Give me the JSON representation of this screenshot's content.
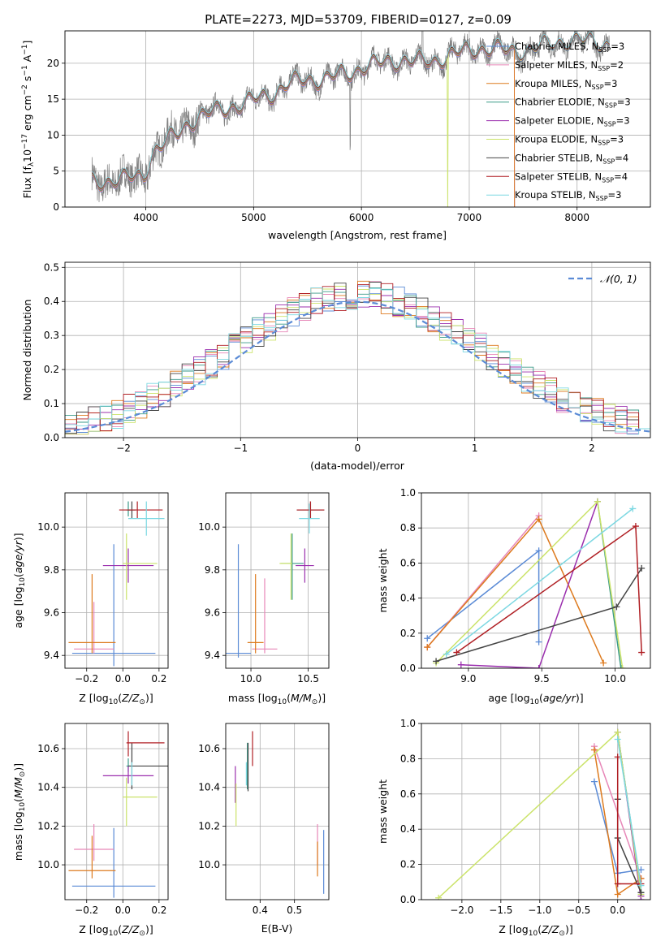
{
  "title": "PLATE=2273, MJD=53709, FIBERID=0127, z=0.09",
  "colors": {
    "Chabrier MILES": "#5b8bd6",
    "Salpeter MILES": "#e787b8",
    "Kroupa MILES": "#dd7a1e",
    "Chabrier ELODIE": "#3a9a88",
    "Salpeter ELODIE": "#9b2fae",
    "Kroupa ELODIE": "#cbe36a",
    "Chabrier STELIB": "#444444",
    "Salpeter STELIB": "#b01f24",
    "Kroupa STELIB": "#7dd8e2",
    "gaussian": "#5b8bd6",
    "observed": "#808080"
  },
  "chart_data": [
    {
      "type": "line",
      "id": "spectrum",
      "xlabel": "wavelength [Angstrom, rest frame]",
      "ylabel": "Flux [f",
      "ylabel_parts": [
        "Flux [f",
        "λ",
        "10",
        "−17",
        " erg cm",
        "−2",
        " s",
        "−1",
        " A",
        "−1",
        "]"
      ],
      "xlim": [
        3250,
        8680
      ],
      "ylim": [
        0,
        24.5
      ],
      "xticks": [
        4000,
        5000,
        6000,
        7000,
        8000
      ],
      "yticks": [
        0,
        5,
        10,
        15,
        20
      ],
      "legend_placement": "top-right",
      "legend": [
        {
          "name": "Chabrier MILES",
          "sub": "SSP",
          "val": "=3"
        },
        {
          "name": "Salpeter MILES",
          "sub": "SSP",
          "val": "=2"
        },
        {
          "name": "Kroupa MILES",
          "sub": "SSP",
          "val": "=3"
        },
        {
          "name": "Chabrier ELODIE",
          "sub": "SSP",
          "val": "=3"
        },
        {
          "name": "Salpeter ELODIE",
          "sub": "SSP",
          "val": "=3"
        },
        {
          "name": "Kroupa ELODIE",
          "sub": "SSP",
          "val": "=3"
        },
        {
          "name": "Chabrier STELIB",
          "sub": "SSP",
          "val": "=4"
        },
        {
          "name": "Salpeter STELIB",
          "sub": "SSP",
          "val": "=4"
        },
        {
          "name": "Kroupa STELIB",
          "sub": "SSP",
          "val": "=3"
        }
      ],
      "continuum": [
        [
          3500,
          3.0
        ],
        [
          3600,
          2.9
        ],
        [
          3700,
          3.6
        ],
        [
          3800,
          3.9
        ],
        [
          3900,
          4.2
        ],
        [
          3980,
          4.6
        ],
        [
          4050,
          7.5
        ],
        [
          4100,
          8.6
        ],
        [
          4200,
          9.3
        ],
        [
          4300,
          10.0
        ],
        [
          4400,
          11.3
        ],
        [
          4500,
          12.2
        ],
        [
          4600,
          12.8
        ],
        [
          4700,
          13.6
        ],
        [
          4800,
          14.3
        ],
        [
          4900,
          14.7
        ],
        [
          5000,
          15.2
        ],
        [
          5100,
          15.4
        ],
        [
          5200,
          15.6
        ],
        [
          5300,
          16.5
        ],
        [
          5400,
          17.1
        ],
        [
          5500,
          17.6
        ],
        [
          5600,
          17.9
        ],
        [
          5700,
          18.3
        ],
        [
          5800,
          18.8
        ],
        [
          5900,
          18.9
        ],
        [
          6000,
          19.3
        ],
        [
          6100,
          19.4
        ],
        [
          6200,
          19.6
        ],
        [
          6300,
          20.0
        ],
        [
          6400,
          20.4
        ],
        [
          6500,
          20.5
        ],
        [
          6600,
          20.6
        ],
        [
          6700,
          20.8
        ],
        [
          6800,
          21.1
        ],
        [
          6900,
          21.2
        ],
        [
          7000,
          21.3
        ],
        [
          7100,
          21.6
        ],
        [
          7200,
          21.8
        ],
        [
          7300,
          21.9
        ],
        [
          7400,
          22.0
        ],
        [
          7500,
          22.1
        ],
        [
          7600,
          22.2
        ],
        [
          7700,
          22.3
        ],
        [
          7800,
          22.4
        ],
        [
          7900,
          22.6
        ],
        [
          8000,
          22.7
        ],
        [
          8100,
          22.9
        ],
        [
          8200,
          23.0
        ],
        [
          8300,
          23.0
        ]
      ],
      "obs_range": [
        3500,
        8300
      ],
      "model_ranges": {
        "Salpeter MILES": [
          3500,
          7420
        ],
        "Kroupa MILES": [
          3500,
          7420
        ],
        "Chabrier MILES": [
          3500,
          7420
        ]
      },
      "features": [
        {
          "x": 5895,
          "depth": 3.2
        },
        {
          "x": 6800,
          "depth": 21.0,
          "model": "Kroupa ELODIE"
        },
        {
          "x": 6565,
          "spike": 7.0
        }
      ]
    },
    {
      "type": "bar",
      "id": "residuals",
      "xlabel": "(data-model)/error",
      "ylabel": "Normed distribution",
      "xlim": [
        -2.5,
        2.5
      ],
      "ylim": [
        0,
        0.515
      ],
      "xticks": [
        -2,
        -1,
        0,
        1,
        2
      ],
      "yticks": [
        0.0,
        0.1,
        0.2,
        0.3,
        0.4,
        0.5
      ],
      "legend": [
        {
          "name": "𝒩(0, 1)"
        }
      ],
      "legend_placement": "top-right",
      "bin_width": 0.1
    },
    {
      "type": "scatter",
      "id": "age_vs_Z",
      "xlabel": "Z [log",
      "ylabel": "age  [log",
      "xlim": [
        -0.32,
        0.25
      ],
      "ylim": [
        9.34,
        10.16
      ],
      "xticks": [
        -0.2,
        0.0,
        0.2
      ],
      "yticks": [
        9.4,
        9.6,
        9.8,
        10.0
      ],
      "points": [
        {
          "model": "Chabrier MILES",
          "x": -0.05,
          "xerr": [
            0.23,
            0.23
          ],
          "y": 9.41,
          "yerr": [
            0.06,
            0.51
          ]
        },
        {
          "model": "Salpeter MILES",
          "x": -0.16,
          "xerr": [
            0.11,
            0.11
          ],
          "y": 9.43,
          "yerr": [
            0.02,
            0.22
          ]
        },
        {
          "model": "Kroupa MILES",
          "x": -0.17,
          "xerr": [
            0.13,
            0.13
          ],
          "y": 9.46,
          "yerr": [
            0.05,
            0.32
          ]
        },
        {
          "model": "Chabrier ELODIE",
          "x": 0.03,
          "xerr": [
            0.01,
            0.01
          ],
          "y": 10.08,
          "yerr": [
            0.03,
            0.04
          ]
        },
        {
          "model": "Salpeter ELODIE",
          "x": 0.03,
          "xerr": [
            0.14,
            0.14
          ],
          "y": 9.82,
          "yerr": [
            0.08,
            0.08
          ]
        },
        {
          "model": "Kroupa ELODIE",
          "x": 0.02,
          "xerr": [
            0.02,
            0.17
          ],
          "y": 9.83,
          "yerr": [
            0.17,
            0.14
          ]
        },
        {
          "model": "Chabrier STELIB",
          "x": 0.05,
          "xerr": [
            0.02,
            0.02
          ],
          "y": 10.08,
          "yerr": [
            0.04,
            0.04
          ]
        },
        {
          "model": "Salpeter STELIB",
          "x": 0.08,
          "xerr": [
            0.1,
            0.14
          ],
          "y": 10.08,
          "yerr": [
            0.04,
            0.04
          ]
        },
        {
          "model": "Kroupa STELIB",
          "x": 0.13,
          "xerr": [
            0.1,
            0.1
          ],
          "y": 10.04,
          "yerr": [
            0.08,
            0.08
          ]
        }
      ]
    },
    {
      "type": "scatter",
      "id": "age_vs_mass",
      "xlabel": "mass [log",
      "xlim": [
        9.78,
        10.68
      ],
      "ylim": [
        9.34,
        10.16
      ],
      "xticks": [
        10.0,
        10.5
      ],
      "yticks": [
        9.4,
        9.6,
        9.8,
        10.0
      ],
      "points": [
        {
          "model": "Chabrier MILES",
          "x": 9.89,
          "xerr": [
            0.11,
            0.11
          ],
          "y": 9.41,
          "yerr": [
            0.02,
            0.51
          ]
        },
        {
          "model": "Salpeter MILES",
          "x": 10.12,
          "xerr": [
            0.11,
            0.11
          ],
          "y": 9.43,
          "yerr": [
            0.02,
            0.33
          ]
        },
        {
          "model": "Kroupa MILES",
          "x": 10.04,
          "xerr": [
            0.07,
            0.07
          ],
          "y": 9.46,
          "yerr": [
            0.05,
            0.32
          ]
        },
        {
          "model": "Chabrier ELODIE",
          "x": 10.36,
          "xerr": [
            0.1,
            0.1
          ],
          "y": 9.83,
          "yerr": [
            0.17,
            0.14
          ]
        },
        {
          "model": "Salpeter ELODIE",
          "x": 10.47,
          "xerr": [
            0.08,
            0.08
          ],
          "y": 9.82,
          "yerr": [
            0.08,
            0.08
          ]
        },
        {
          "model": "Kroupa ELODIE",
          "x": 10.35,
          "xerr": [
            0.1,
            0.01
          ],
          "y": 9.83,
          "yerr": [
            0.17,
            0.14
          ]
        },
        {
          "model": "Chabrier STELIB",
          "x": 10.52,
          "xerr": [
            0.12,
            0.12
          ],
          "y": 10.08,
          "yerr": [
            0.04,
            0.04
          ]
        },
        {
          "model": "Salpeter STELIB",
          "x": 10.52,
          "xerr": [
            0.12,
            0.12
          ],
          "y": 10.08,
          "yerr": [
            0.04,
            0.04
          ]
        },
        {
          "model": "Kroupa STELIB",
          "x": 10.51,
          "xerr": [
            0.09,
            0.09
          ],
          "y": 10.04,
          "yerr": [
            0.07,
            0.07
          ]
        }
      ]
    },
    {
      "type": "line",
      "id": "weight_vs_age",
      "xlabel": "age  [log",
      "ylabel": "mass weight",
      "xlim": [
        8.68,
        10.24
      ],
      "ylim": [
        0,
        1.0
      ],
      "xticks": [
        9.0,
        9.5,
        10.0
      ],
      "yticks": [
        0.0,
        0.2,
        0.4,
        0.6,
        0.8,
        1.0
      ],
      "series": [
        {
          "name": "Chabrier MILES",
          "x": [
            8.72,
            9.48,
            9.48
          ],
          "y": [
            0.17,
            0.67,
            0.15
          ]
        },
        {
          "name": "Salpeter MILES",
          "x": [
            8.72,
            9.48
          ],
          "y": [
            0.12,
            0.87
          ]
        },
        {
          "name": "Kroupa MILES",
          "x": [
            8.72,
            9.48,
            9.92
          ],
          "y": [
            0.12,
            0.85,
            0.03
          ]
        },
        {
          "name": "Chabrier ELODIE",
          "x": [
            9.88,
            10.04
          ],
          "y": [
            0.95,
            0.0
          ]
        },
        {
          "name": "Salpeter ELODIE",
          "x": [
            8.95,
            9.48,
            9.88
          ],
          "y": [
            0.02,
            0.0,
            0.95
          ]
        },
        {
          "name": "Kroupa ELODIE",
          "x": [
            8.78,
            9.88,
            10.05
          ],
          "y": [
            0.03,
            0.95,
            0.0
          ]
        },
        {
          "name": "Chabrier STELIB",
          "x": [
            8.78,
            10.01,
            10.18
          ],
          "y": [
            0.04,
            0.35,
            0.57
          ]
        },
        {
          "name": "Salpeter STELIB",
          "x": [
            8.92,
            10.14,
            10.18
          ],
          "y": [
            0.09,
            0.81,
            0.09
          ]
        },
        {
          "name": "Kroupa STELIB",
          "x": [
            8.85,
            10.12
          ],
          "y": [
            0.08,
            0.91
          ]
        }
      ]
    },
    {
      "type": "scatter",
      "id": "mass_vs_Z",
      "xlabel": "Z [log",
      "ylabel": "mass [log",
      "xlim": [
        -0.32,
        0.25
      ],
      "ylim": [
        9.82,
        10.73
      ],
      "xticks": [
        -0.2,
        0.0,
        0.2
      ],
      "yticks": [
        10.0,
        10.2,
        10.4,
        10.6
      ],
      "points": [
        {
          "model": "Chabrier MILES",
          "x": -0.05,
          "xerr": [
            0.23,
            0.23
          ],
          "y": 9.89,
          "yerr": [
            0.06,
            0.3
          ]
        },
        {
          "model": "Salpeter MILES",
          "x": -0.16,
          "xerr": [
            0.11,
            0.11
          ],
          "y": 10.08,
          "yerr": [
            0.06,
            0.13
          ]
        },
        {
          "model": "Kroupa MILES",
          "x": -0.17,
          "xerr": [
            0.13,
            0.13
          ],
          "y": 9.97,
          "yerr": [
            0.04,
            0.18
          ]
        },
        {
          "model": "Chabrier ELODIE",
          "x": 0.03,
          "xerr": [
            0.01,
            0.01
          ],
          "y": 10.51,
          "yerr": [
            0.03,
            0.04
          ]
        },
        {
          "model": "Salpeter ELODIE",
          "x": 0.03,
          "xerr": [
            0.14,
            0.14
          ],
          "y": 10.46,
          "yerr": [
            0.04,
            0.05
          ]
        },
        {
          "model": "Kroupa ELODIE",
          "x": 0.02,
          "xerr": [
            0.02,
            0.17
          ],
          "y": 10.35,
          "yerr": [
            0.15,
            0.1
          ]
        },
        {
          "model": "Chabrier STELIB",
          "x": 0.05,
          "xerr": [
            0.02,
            0.2
          ],
          "y": 10.51,
          "yerr": [
            0.12,
            0.12
          ]
        },
        {
          "model": "Salpeter STELIB",
          "x": 0.03,
          "xerr": [
            0.01,
            0.2
          ],
          "y": 10.63,
          "yerr": [
            0.07,
            0.06
          ]
        },
        {
          "model": "Kroupa STELIB",
          "x": 0.05,
          "xerr": [
            0.0,
            0.0
          ],
          "y": 10.47,
          "yerr": [
            0.06,
            0.06
          ]
        }
      ]
    },
    {
      "type": "scatter",
      "id": "mass_vs_EBV",
      "xlabel": "E(B-V)",
      "xlim": [
        0.3,
        0.6
      ],
      "ylim": [
        9.82,
        10.73
      ],
      "xticks": [
        0.4,
        0.5
      ],
      "yticks": [
        10.0,
        10.2,
        10.4,
        10.6
      ],
      "points": [
        {
          "model": "Chabrier MILES",
          "x": 0.585,
          "y": 9.98,
          "yerr": [
            0.13,
            0.2
          ]
        },
        {
          "model": "Salpeter MILES",
          "x": 0.567,
          "y": 10.1,
          "yerr": [
            0.1,
            0.11
          ]
        },
        {
          "model": "Kroupa MILES",
          "x": 0.567,
          "y": 10.06,
          "yerr": [
            0.12,
            0.06
          ]
        },
        {
          "model": "Chabrier ELODIE",
          "x": 0.363,
          "y": 10.51,
          "yerr": [
            0.12,
            0.12
          ]
        },
        {
          "model": "Salpeter ELODIE",
          "x": 0.328,
          "y": 10.42,
          "yerr": [
            0.1,
            0.09
          ]
        },
        {
          "model": "Kroupa ELODIE",
          "x": 0.33,
          "y": 10.32,
          "yerr": [
            0.12,
            0.1
          ]
        },
        {
          "model": "Chabrier STELIB",
          "x": 0.365,
          "y": 10.51,
          "yerr": [
            0.13,
            0.12
          ]
        },
        {
          "model": "Salpeter STELIB",
          "x": 0.378,
          "y": 10.6,
          "yerr": [
            0.09,
            0.09
          ]
        },
        {
          "model": "Kroupa STELIB",
          "x": 0.36,
          "y": 10.47,
          "yerr": [
            0.06,
            0.06
          ]
        }
      ]
    },
    {
      "type": "line",
      "id": "weight_vs_Z",
      "xlabel": "Z [log",
      "ylabel": "mass weight",
      "xlim": [
        -2.52,
        0.42
      ],
      "ylim": [
        0,
        1.0
      ],
      "xticks": [
        -2.0,
        -1.5,
        -1.0,
        -0.5,
        0.0
      ],
      "tick_labels": [
        "−2.0",
        "−1.5",
        "−1.0",
        "−0.5",
        "0.0"
      ],
      "yticks": [
        0.0,
        0.2,
        0.4,
        0.6,
        0.8,
        1.0
      ],
      "series": [
        {
          "name": "Chabrier MILES",
          "x": [
            -0.3,
            0.0,
            0.3
          ],
          "y": [
            0.67,
            0.15,
            0.17
          ]
        },
        {
          "name": "Salpeter MILES",
          "x": [
            -0.3,
            0.3
          ],
          "y": [
            0.87,
            0.12
          ]
        },
        {
          "name": "Kroupa MILES",
          "x": [
            -0.3,
            0.0,
            0.3
          ],
          "y": [
            0.85,
            0.03,
            0.12
          ]
        },
        {
          "name": "Chabrier ELODIE",
          "x": [
            0.0,
            0.3
          ],
          "y": [
            0.95,
            0.04
          ]
        },
        {
          "name": "Salpeter ELODIE",
          "x": [
            0.3,
            0.0,
            0.3
          ],
          "y": [
            0.02,
            0.95,
            0.0
          ]
        },
        {
          "name": "Kroupa ELODIE",
          "x": [
            -2.3,
            0.0,
            0.3
          ],
          "y": [
            0.01,
            0.95,
            0.03
          ]
        },
        {
          "name": "Chabrier STELIB",
          "x": [
            0.0,
            0.0,
            0.3
          ],
          "y": [
            0.57,
            0.35,
            0.04
          ]
        },
        {
          "name": "Salpeter STELIB",
          "x": [
            0.0,
            0.0,
            0.3
          ],
          "y": [
            0.81,
            0.09,
            0.09
          ]
        },
        {
          "name": "Kroupa STELIB",
          "x": [
            0.0,
            0.3
          ],
          "y": [
            0.91,
            0.08
          ]
        }
      ]
    }
  ]
}
